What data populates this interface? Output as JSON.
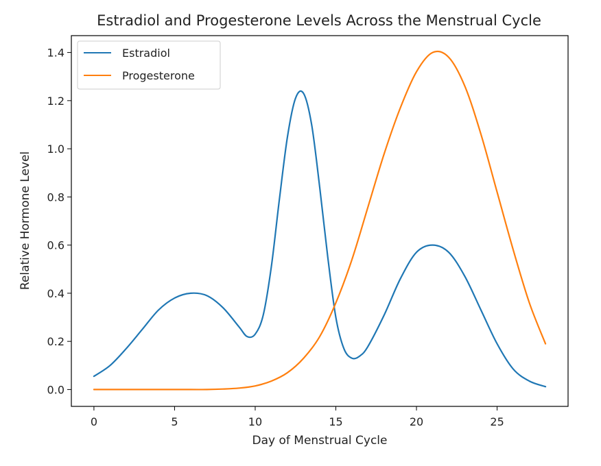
{
  "chart_data": {
    "type": "line",
    "title": "Estradiol and Progesterone Levels Across the Menstrual Cycle",
    "xlabel": "Day of Menstrual Cycle",
    "ylabel": "Relative Hormone Level",
    "xlim": [
      -1.4,
      29.4
    ],
    "ylim": [
      -0.07,
      1.47
    ],
    "xticks": [
      "0",
      "5",
      "10",
      "15",
      "20",
      "25"
    ],
    "yticks": [
      "0.0",
      "0.2",
      "0.4",
      "0.6",
      "0.8",
      "1.0",
      "1.2",
      "1.4"
    ],
    "grid": false,
    "legend_position": "upper-left",
    "series": [
      {
        "name": "Estradiol",
        "color": "#1f77b4",
        "x": [
          0,
          1,
          2,
          3,
          4,
          5,
          6,
          7,
          8,
          9,
          9.5,
          10,
          10.5,
          11,
          11.5,
          12,
          12.5,
          13,
          13.5,
          14,
          14.5,
          15,
          15.5,
          16,
          16.5,
          17,
          18,
          19,
          20,
          21,
          22,
          23,
          24,
          25,
          26,
          27,
          28
        ],
        "y": [
          0.055,
          0.1,
          0.17,
          0.25,
          0.33,
          0.38,
          0.4,
          0.39,
          0.34,
          0.26,
          0.22,
          0.23,
          0.31,
          0.51,
          0.79,
          1.05,
          1.21,
          1.23,
          1.1,
          0.84,
          0.55,
          0.3,
          0.17,
          0.13,
          0.14,
          0.18,
          0.31,
          0.46,
          0.57,
          0.6,
          0.57,
          0.47,
          0.33,
          0.19,
          0.085,
          0.035,
          0.012
        ]
      },
      {
        "name": "Progesterone",
        "color": "#ff7f0e",
        "x": [
          0,
          2,
          4,
          6,
          7,
          8,
          9,
          10,
          11,
          12,
          13,
          14,
          15,
          16,
          17,
          18,
          19,
          20,
          21,
          22,
          23,
          24,
          25,
          26,
          27,
          28
        ],
        "y": [
          0.0,
          0.0,
          0.0,
          0.0,
          0.0,
          0.002,
          0.006,
          0.015,
          0.035,
          0.07,
          0.13,
          0.22,
          0.36,
          0.54,
          0.76,
          0.98,
          1.17,
          1.32,
          1.4,
          1.38,
          1.26,
          1.06,
          0.82,
          0.58,
          0.36,
          0.19
        ]
      }
    ]
  }
}
